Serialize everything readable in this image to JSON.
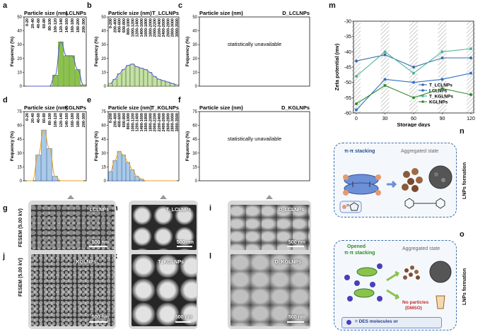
{
  "labels": {
    "a": "a",
    "b": "b",
    "c": "c",
    "d": "d",
    "e": "e",
    "f": "f",
    "g": "g",
    "h": "h",
    "i": "i",
    "j": "j",
    "k": "k",
    "l": "l",
    "m": "m",
    "n": "n",
    "o": "o"
  },
  "hist": {
    "header": "Particle size (nm)",
    "ylabel": "Fequency (%)",
    "unavailable": "statistically unavailable",
    "a": {
      "tag": "LCLNPs",
      "ymax": 50,
      "yticks": [
        0,
        10,
        20,
        30,
        40,
        50
      ],
      "bins": [
        "0-20",
        "20-40",
        "40-60",
        "60-80",
        "80-100",
        "100-120",
        "120-140",
        "140-160",
        "160-180",
        "180-200",
        "200-300"
      ],
      "values": [
        0,
        0,
        0,
        0,
        0,
        8,
        32,
        22,
        22,
        12,
        1
      ]
    },
    "b": {
      "tag": "T_LCLNPs",
      "ymax": 50,
      "yticks": [
        0,
        10,
        20,
        30,
        40,
        50
      ],
      "bins": [
        "0-200",
        "200-400",
        "400-600",
        "600-800",
        "800-1000",
        "1000-1200",
        "1200-1400",
        "1400-1600",
        "1600-1800",
        "1800-2000",
        "2000-2200",
        "2200-2400",
        "2400-2600",
        "2600-2800",
        "2800-3000",
        "3000-3500"
      ],
      "values": [
        2,
        5,
        9,
        12,
        15,
        16,
        14,
        13,
        12,
        10,
        7,
        5,
        4,
        3,
        2,
        1
      ]
    },
    "c": {
      "tag": "D_LCLNPs",
      "ymax": 50,
      "yticks": [
        0,
        10,
        20,
        30,
        40,
        50
      ]
    },
    "d": {
      "tag": "KGLNPs",
      "ymax": 75,
      "yticks": [
        0,
        15,
        30,
        45,
        60,
        75
      ],
      "bins": [
        "0-20",
        "20-40",
        "40-60",
        "60-80",
        "80-100",
        "100-120",
        "120-140",
        "140-160",
        "160-180",
        "180-200",
        "200-300"
      ],
      "values": [
        0,
        0,
        28,
        55,
        35,
        5,
        0,
        0,
        0,
        0,
        0
      ]
    },
    "e": {
      "tag": "T_KGLNPs",
      "ymax": 75,
      "yticks": [
        0,
        15,
        30,
        45,
        60,
        75
      ],
      "bins": [
        "0-200",
        "200-400",
        "400-600",
        "600-800",
        "800-1000",
        "1000-1200",
        "1200-1400",
        "1400-1600",
        "1600-1800",
        "1800-2000",
        "2000-2200",
        "2200-2400",
        "2400-2600",
        "2600-2800",
        "2800-3000",
        "3000-3500"
      ],
      "values": [
        10,
        22,
        32,
        28,
        20,
        12,
        5,
        2,
        0,
        0,
        0,
        0,
        0,
        0,
        0,
        0
      ]
    },
    "f": {
      "tag": "D_KGLNPs",
      "ymax": 75,
      "yticks": [
        0,
        15,
        30,
        45,
        60,
        75
      ]
    }
  },
  "sem": {
    "axis_top": "FESEM (5.00 kV)",
    "axis_bottom": "FESEM (5.00 kV)",
    "g": "LCLNPs",
    "h": "T_LCLNPs",
    "i": "D_LCLNPs",
    "j": "KGLNPs",
    "k": "T_KGLNPs",
    "l": "D_KGLNPs",
    "scale": "500 nm"
  },
  "chart_data": {
    "type": "line",
    "title": "",
    "xlabel": "Storage days",
    "ylabel": "Zeta potential (mv)",
    "x": [
      0,
      30,
      60,
      90,
      120
    ],
    "xticks": [
      0,
      30,
      60,
      90,
      120
    ],
    "ylim": [
      -60,
      -30
    ],
    "yticks": [
      -30,
      -35,
      -40,
      -45,
      -50,
      -55,
      -60
    ],
    "legend_position": "upper-right",
    "series": [
      {
        "name": "T_LCLNPs",
        "color": "#3a6ea8",
        "values": [
          -43,
          -41,
          -45,
          -42,
          -42
        ]
      },
      {
        "name": "LCLNPs",
        "color": "#2f6fc9",
        "values": [
          -59,
          -49,
          -50,
          -49,
          -47
        ]
      },
      {
        "name": "T_KGLNPs",
        "color": "#4fb39a",
        "values": [
          -48,
          -40,
          -47,
          -40,
          -39
        ]
      },
      {
        "name": "KGLNPs",
        "color": "#2e8b2e",
        "values": [
          -57,
          -51,
          -55,
          -52,
          -54
        ]
      }
    ]
  },
  "scheme_n": {
    "side": "LNPs formation",
    "stacking": "π-π stacking",
    "state": "Aggregated state",
    "eq": "="
  },
  "scheme_o": {
    "side": "LNPs formation",
    "stacking_opened": "Opened",
    "stacking": "π-π stacking",
    "state": "Aggregated state",
    "no_particles": "No particles",
    "dmso": "(DMSO)",
    "legend": "= DES molecules  or"
  }
}
